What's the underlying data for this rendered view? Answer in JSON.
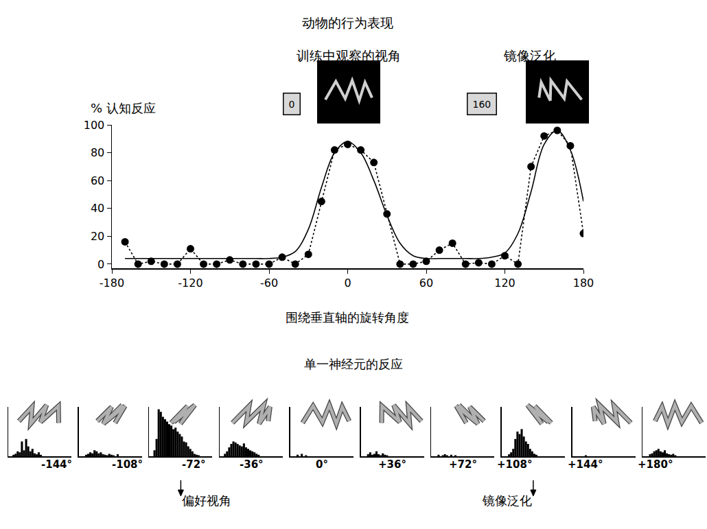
{
  "chart_data": [
    {
      "type": "line",
      "title": "动物的行为表现",
      "x_label": "围绕垂直轴的旋转角度",
      "y_label": "% 认知反应",
      "xlim": [
        -180,
        180
      ],
      "xticks": [
        -180,
        -120,
        -60,
        0,
        60,
        120,
        180
      ],
      "ylim": [
        -3,
        100
      ],
      "yticks": [
        0,
        20,
        40,
        60,
        80,
        100
      ],
      "grid": false,
      "series": [
        {
          "color": "#000000",
          "marker": "circle",
          "line_style": "dotted",
          "x": [
            -170,
            -160,
            -150,
            -140,
            -130,
            -120,
            -110,
            -100,
            -90,
            -80,
            -70,
            -60,
            -50,
            -40,
            -30,
            -20,
            -10,
            0,
            10,
            20,
            30,
            40,
            50,
            60,
            70,
            80,
            90,
            100,
            110,
            120,
            130,
            140,
            150,
            160,
            170,
            180
          ],
          "values": [
            16,
            0,
            2,
            0,
            0,
            11,
            0,
            0,
            3,
            0,
            0,
            0,
            5,
            0,
            7,
            45,
            82,
            86,
            82,
            73,
            36,
            0,
            0,
            2,
            10,
            15,
            0,
            1,
            0,
            6,
            0,
            70,
            92,
            96,
            85,
            22
          ]
        },
        {
          "color": "#000000",
          "marker": "none",
          "line_style": "solid",
          "x": [
            -170,
            -160,
            -150,
            -140,
            -130,
            -120,
            -110,
            -100,
            -90,
            -80,
            -70,
            -60,
            -50,
            -40,
            -30,
            -20,
            -10,
            0,
            10,
            20,
            30,
            40,
            50,
            60,
            70,
            80,
            90,
            100,
            110,
            120,
            130,
            140,
            150,
            160,
            170,
            180
          ],
          "values": [
            4,
            4,
            4,
            4,
            4,
            4,
            4,
            4,
            4,
            4,
            4,
            4,
            5,
            9,
            25,
            55,
            80,
            88,
            80,
            60,
            35,
            15,
            6,
            4,
            4,
            4,
            4,
            4,
            5,
            8,
            22,
            52,
            86,
            96,
            82,
            45
          ]
        }
      ],
      "annotations": [
        {
          "text": "训练中观察的视角",
          "view": 0
        },
        {
          "text": "镜像泛化",
          "view": 160
        }
      ]
    },
    {
      "type": "histogram",
      "title": "单一神经元的反应",
      "tick_labels": false,
      "color": "#000000",
      "xlim": [
        0,
        30
      ],
      "ylim": [
        0,
        100
      ],
      "bins": [
        0,
        1,
        2,
        3,
        4,
        5,
        6,
        7,
        8,
        9,
        10,
        11,
        12,
        13,
        14,
        15,
        16,
        17,
        18,
        19,
        20,
        21,
        22,
        23,
        24
      ],
      "panels": [
        {
          "view": {
            "value": -144,
            "label": "-144°"
          },
          "values": [
            0,
            0,
            3,
            5,
            10,
            8,
            30,
            12,
            35,
            20,
            10,
            15,
            6,
            4,
            8,
            3,
            0,
            0,
            0,
            0,
            0,
            0,
            0,
            0
          ]
        },
        {
          "view": {
            "value": -108,
            "label": "-108°"
          },
          "values": [
            0,
            0,
            0,
            3,
            5,
            8,
            6,
            12,
            10,
            6,
            8,
            4,
            3,
            2,
            5,
            3,
            2,
            0,
            4,
            0,
            0,
            0,
            0,
            0
          ]
        },
        {
          "view": {
            "value": -72,
            "label": "-72°"
          },
          "values": [
            0,
            0,
            12,
            35,
            95,
            90,
            80,
            75,
            70,
            65,
            62,
            55,
            58,
            50,
            45,
            40,
            30,
            28,
            20,
            15,
            10,
            5,
            3,
            2
          ]
        },
        {
          "view": {
            "value": -36,
            "label": "-36°"
          },
          "values": [
            0,
            0,
            5,
            10,
            18,
            25,
            30,
            28,
            25,
            22,
            20,
            26,
            18,
            15,
            12,
            10,
            8,
            5,
            3,
            0,
            0,
            0,
            0,
            0
          ]
        },
        {
          "view": {
            "value": 0,
            "label": "0°"
          },
          "values": [
            0,
            0,
            0,
            3,
            0,
            5,
            0,
            2,
            0,
            0,
            0,
            0,
            0,
            0,
            0,
            0,
            0,
            0,
            0,
            0,
            0,
            0,
            0,
            0
          ]
        },
        {
          "view": {
            "value": 36,
            "label": "+36°"
          },
          "values": [
            0,
            0,
            0,
            4,
            8,
            3,
            5,
            10,
            4,
            2,
            6,
            3,
            2,
            0,
            0,
            0,
            0,
            0,
            0,
            0,
            0,
            0,
            0,
            0
          ]
        },
        {
          "view": {
            "value": 72,
            "label": "+72°"
          },
          "values": [
            0,
            0,
            0,
            3,
            0,
            2,
            4,
            2,
            0,
            3,
            0,
            2,
            0,
            0,
            0,
            0,
            0,
            0,
            0,
            0,
            0,
            0,
            0,
            0
          ]
        },
        {
          "view": {
            "value": 108,
            "label": "+108°"
          },
          "values": [
            0,
            0,
            0,
            4,
            8,
            15,
            35,
            50,
            45,
            55,
            40,
            30,
            25,
            15,
            10,
            5,
            3,
            0,
            0,
            0,
            0,
            0,
            0,
            0
          ]
        },
        {
          "view": {
            "value": 144,
            "label": "+144°"
          },
          "values": [
            0,
            0,
            0,
            0,
            0,
            0,
            2,
            0,
            0,
            0,
            0,
            0,
            0,
            0,
            0,
            0,
            0,
            0,
            0,
            0,
            0,
            0,
            0,
            0
          ]
        },
        {
          "view": {
            "value": 180,
            "label": "+180°"
          },
          "values": [
            0,
            0,
            0,
            4,
            6,
            10,
            12,
            15,
            10,
            8,
            12,
            6,
            4,
            3,
            5,
            2,
            0,
            0,
            0,
            0,
            0,
            0,
            0,
            0
          ]
        }
      ],
      "annotations": [
        {
          "text": "偏好视角",
          "view": -72
        },
        {
          "text": "镜像泛化",
          "view": 108
        }
      ]
    }
  ]
}
